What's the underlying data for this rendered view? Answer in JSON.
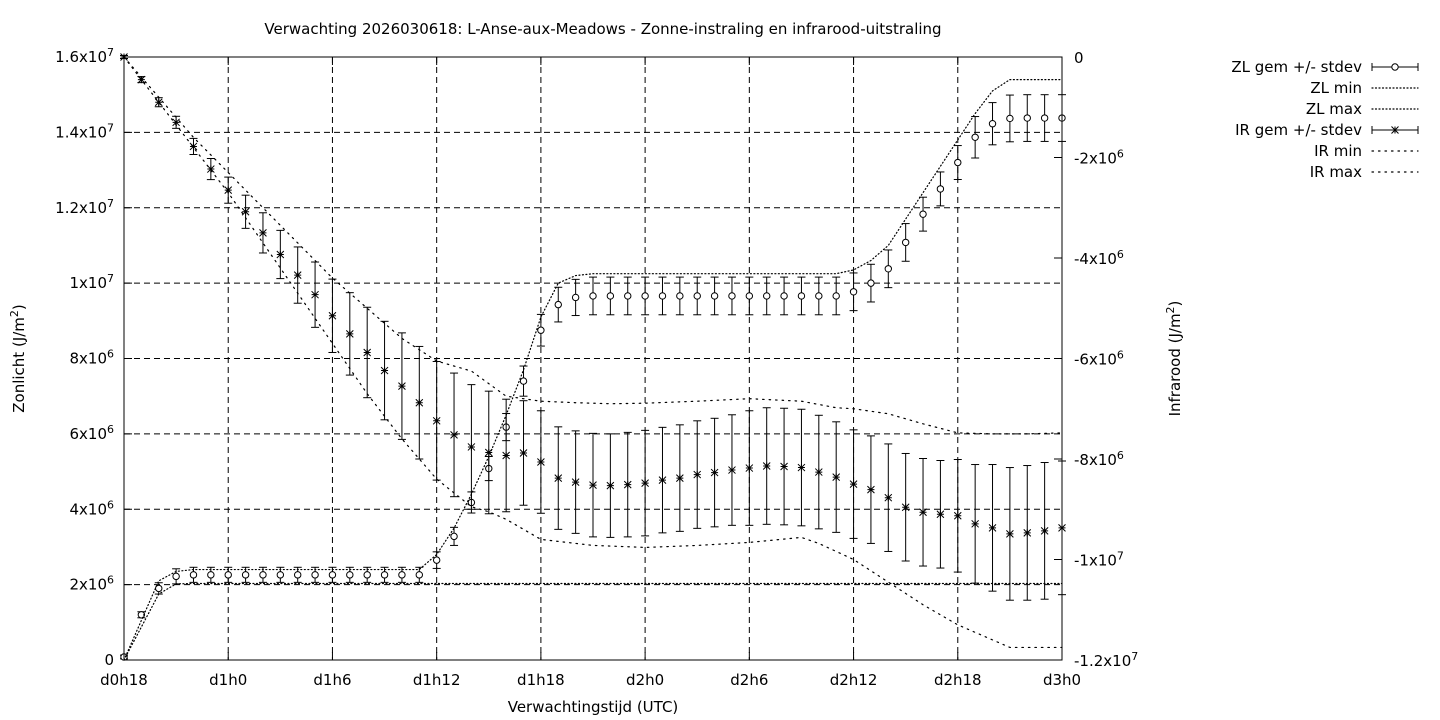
{
  "chart_data": {
    "type": "line",
    "title": "Verwachting 2026030618: L-Anse-aux-Meadows - Zonne-instraling en infrarood-uitstraling",
    "xlabel": "Verwachtingstijd (UTC)",
    "ylabel_left": {
      "text": "Zonlicht (J/m",
      "sup": "2",
      "close": ")"
    },
    "ylabel_right": {
      "text": "Infrarood (J/m",
      "sup": "2",
      "close": ")"
    },
    "x_unit": "forecast hours after d0h18",
    "xlim": [
      0,
      54
    ],
    "ylim_left": [
      0,
      16000000
    ],
    "ylim_right": [
      -12000000,
      0
    ],
    "grid": true,
    "x_ticks": [
      {
        "x": 0,
        "label": "d0h18"
      },
      {
        "x": 6,
        "label": "d1h0"
      },
      {
        "x": 12,
        "label": "d1h6"
      },
      {
        "x": 18,
        "label": "d1h12"
      },
      {
        "x": 24,
        "label": "d1h18"
      },
      {
        "x": 30,
        "label": "d2h0"
      },
      {
        "x": 36,
        "label": "d2h6"
      },
      {
        "x": 42,
        "label": "d2h12"
      },
      {
        "x": 48,
        "label": "d2h18"
      },
      {
        "x": 54,
        "label": "d3h0"
      }
    ],
    "y_ticks_left": [
      {
        "v": 0,
        "m": "0",
        "e": ""
      },
      {
        "v": 2000000,
        "m": "2x10",
        "e": "6"
      },
      {
        "v": 4000000,
        "m": "4x10",
        "e": "6"
      },
      {
        "v": 6000000,
        "m": "6x10",
        "e": "6"
      },
      {
        "v": 8000000,
        "m": "8x10",
        "e": "6"
      },
      {
        "v": 10000000,
        "m": "1x10",
        "e": "7"
      },
      {
        "v": 12000000,
        "m": "1.2x10",
        "e": "7"
      },
      {
        "v": 14000000,
        "m": "1.4x10",
        "e": "7"
      },
      {
        "v": 16000000,
        "m": "1.6x10",
        "e": "7"
      }
    ],
    "y_ticks_right": [
      {
        "v": 0,
        "m": "0",
        "e": ""
      },
      {
        "v": -2000000,
        "m": "-2x10",
        "e": "6"
      },
      {
        "v": -4000000,
        "m": "-4x10",
        "e": "6"
      },
      {
        "v": -6000000,
        "m": "-6x10",
        "e": "6"
      },
      {
        "v": -8000000,
        "m": "-8x10",
        "e": "6"
      },
      {
        "v": -10000000,
        "m": "-1x10",
        "e": "7"
      },
      {
        "v": -12000000,
        "m": "-1.2x10",
        "e": "7"
      }
    ],
    "legend_position": "outside-right-top",
    "legend": [
      "ZL gem +/- stdev",
      "ZL min",
      "ZL max",
      "IR gem +/- stdev",
      "IR min",
      "IR max"
    ],
    "series": [
      {
        "name": "ZL gem +/- stdev",
        "axis": "left",
        "style": "errorbars-circle",
        "x": [
          0,
          1,
          2,
          3,
          4,
          5,
          6,
          7,
          8,
          9,
          10,
          11,
          12,
          13,
          14,
          15,
          16,
          17,
          18,
          19,
          20,
          21,
          22,
          23,
          24,
          25,
          26,
          27,
          28,
          29,
          30,
          31,
          32,
          33,
          34,
          35,
          36,
          37,
          38,
          39,
          40,
          41,
          42,
          43,
          44,
          45,
          46,
          47,
          48,
          49,
          50,
          51,
          52,
          53,
          54
        ],
        "y": [
          80000,
          1200000,
          1900000,
          2220000,
          2260000,
          2260000,
          2260000,
          2260000,
          2260000,
          2260000,
          2260000,
          2260000,
          2260000,
          2260000,
          2260000,
          2260000,
          2260000,
          2260000,
          2650000,
          3280000,
          4180000,
          5080000,
          6180000,
          7400000,
          8750000,
          9430000,
          9620000,
          9660000,
          9660000,
          9660000,
          9660000,
          9660000,
          9660000,
          9660000,
          9660000,
          9660000,
          9660000,
          9660000,
          9660000,
          9660000,
          9660000,
          9660000,
          9770000,
          10000000,
          10380000,
          11080000,
          11830000,
          12500000,
          13200000,
          13870000,
          14230000,
          14370000,
          14380000,
          14380000,
          14380000
        ],
        "stdev": [
          50000,
          80000,
          150000,
          200000,
          200000,
          200000,
          200000,
          200000,
          200000,
          200000,
          200000,
          200000,
          200000,
          200000,
          200000,
          200000,
          200000,
          200000,
          220000,
          240000,
          280000,
          320000,
          360000,
          400000,
          420000,
          460000,
          480000,
          500000,
          500000,
          500000,
          500000,
          500000,
          500000,
          500000,
          500000,
          500000,
          500000,
          500000,
          500000,
          500000,
          500000,
          500000,
          500000,
          500000,
          500000,
          500000,
          450000,
          450000,
          450000,
          550000,
          560000,
          620000,
          620000,
          620000,
          620000
        ]
      },
      {
        "name": "ZL min",
        "axis": "left",
        "style": "dotted",
        "x": [
          0,
          2,
          3,
          4,
          6,
          9,
          11,
          12,
          13,
          14,
          15,
          16,
          17,
          18,
          19,
          20,
          21,
          22,
          23,
          24,
          25,
          26,
          27,
          28,
          30,
          33,
          36,
          39,
          41,
          42,
          43,
          44,
          45,
          46,
          47,
          48,
          49,
          50,
          51,
          52,
          54
        ],
        "y": [
          0,
          1750000,
          2020000,
          2030000,
          2030000,
          2030000,
          2030000,
          2030000,
          2030000,
          2030000,
          2030000,
          2030000,
          2030000,
          2030000,
          2030000,
          2030000,
          2030000,
          2030000,
          2030000,
          2030000,
          2030000,
          2030000,
          2030000,
          2030000,
          2030000,
          2030000,
          2030000,
          2030000,
          2030000,
          2030000,
          2030000,
          2030000,
          2030000,
          2030000,
          2030000,
          2030000,
          2030000,
          2030000,
          2030000,
          2030000,
          2030000
        ]
      },
      {
        "name": "ZL max",
        "axis": "left",
        "style": "dotted",
        "x": [
          0,
          2,
          3,
          4,
          6,
          12,
          16,
          17,
          18,
          19,
          20,
          21,
          22,
          23,
          24,
          25,
          26,
          27,
          28,
          30,
          33,
          36,
          39,
          41,
          42,
          43,
          44,
          45,
          46,
          47,
          48,
          49,
          50,
          51,
          52,
          54
        ],
        "y": [
          0,
          2100000,
          2350000,
          2400000,
          2400000,
          2400000,
          2400000,
          2400000,
          2800000,
          3500000,
          4400000,
          5400000,
          6500000,
          7700000,
          9100000,
          10000000,
          10200000,
          10250000,
          10250000,
          10250000,
          10250000,
          10250000,
          10250000,
          10250000,
          10350000,
          10600000,
          11000000,
          11700000,
          12400000,
          13100000,
          13800000,
          14500000,
          15100000,
          15400000,
          15400000,
          15400000
        ]
      },
      {
        "name": "IR gem +/- stdev",
        "axis": "right",
        "style": "errorbars-star",
        "x": [
          0,
          1,
          2,
          3,
          4,
          5,
          6,
          7,
          8,
          9,
          10,
          11,
          12,
          13,
          14,
          15,
          16,
          17,
          18,
          19,
          20,
          21,
          22,
          23,
          24,
          25,
          26,
          27,
          28,
          29,
          30,
          31,
          32,
          33,
          34,
          35,
          36,
          37,
          38,
          39,
          40,
          41,
          42,
          43,
          44,
          45,
          46,
          47,
          48,
          49,
          50,
          51,
          52,
          53,
          54
        ],
        "y": [
          0,
          -450000,
          -900000,
          -1300000,
          -1780000,
          -2230000,
          -2650000,
          -3080000,
          -3500000,
          -3930000,
          -4340000,
          -4730000,
          -5150000,
          -5510000,
          -5880000,
          -6240000,
          -6550000,
          -6880000,
          -7240000,
          -7520000,
          -7760000,
          -7870000,
          -7930000,
          -7880000,
          -8060000,
          -8380000,
          -8460000,
          -8520000,
          -8530000,
          -8510000,
          -8480000,
          -8420000,
          -8380000,
          -8310000,
          -8270000,
          -8220000,
          -8180000,
          -8140000,
          -8150000,
          -8170000,
          -8260000,
          -8360000,
          -8500000,
          -8610000,
          -8770000,
          -8960000,
          -9060000,
          -9100000,
          -9130000,
          -9290000,
          -9370000,
          -9490000,
          -9470000,
          -9430000,
          -9370000
        ],
        "stdev": [
          30000,
          60000,
          90000,
          120000,
          160000,
          210000,
          260000,
          330000,
          400000,
          480000,
          560000,
          650000,
          730000,
          820000,
          900000,
          980000,
          1060000,
          1120000,
          1180000,
          1230000,
          1240000,
          1220000,
          1120000,
          1040000,
          1020000,
          1020000,
          1020000,
          1030000,
          1030000,
          1040000,
          1050000,
          1050000,
          1060000,
          1070000,
          1080000,
          1100000,
          1140000,
          1160000,
          1160000,
          1160000,
          1130000,
          1100000,
          1080000,
          1070000,
          1070000,
          1070000,
          1070000,
          1070000,
          1120000,
          1180000,
          1260000,
          1320000,
          1340000,
          1360000,
          1330000
        ]
      },
      {
        "name": "IR min",
        "axis": "right",
        "style": "dotted",
        "x": [
          0,
          2,
          4,
          6,
          8,
          10,
          12,
          14,
          16,
          18,
          20,
          21,
          22,
          24,
          27,
          30,
          33,
          36,
          39,
          40,
          42,
          44,
          46,
          48,
          50,
          51,
          52,
          54
        ],
        "y": [
          0,
          -900000,
          -1800000,
          -2700000,
          -3700000,
          -4700000,
          -5700000,
          -6700000,
          -7600000,
          -8400000,
          -8950000,
          -9050000,
          -9200000,
          -9600000,
          -9720000,
          -9760000,
          -9720000,
          -9660000,
          -9560000,
          -9680000,
          -10000000,
          -10450000,
          -10900000,
          -11300000,
          -11600000,
          -11750000,
          -11750000,
          -11750000
        ]
      },
      {
        "name": "IR max",
        "axis": "right",
        "style": "dotted",
        "x": [
          0,
          2,
          4,
          6,
          8,
          10,
          12,
          14,
          16,
          18,
          20,
          22,
          24,
          26,
          28,
          30,
          33,
          36,
          39,
          41,
          42,
          44,
          46,
          48,
          50,
          52,
          54
        ],
        "y": [
          0,
          -800000,
          -1600000,
          -2300000,
          -3000000,
          -3700000,
          -4400000,
          -5000000,
          -5600000,
          -6050000,
          -6250000,
          -6750000,
          -6850000,
          -6880000,
          -6900000,
          -6890000,
          -6850000,
          -6800000,
          -6850000,
          -6980000,
          -7000000,
          -7100000,
          -7300000,
          -7480000,
          -7500000,
          -7500000,
          -7480000
        ]
      }
    ]
  }
}
